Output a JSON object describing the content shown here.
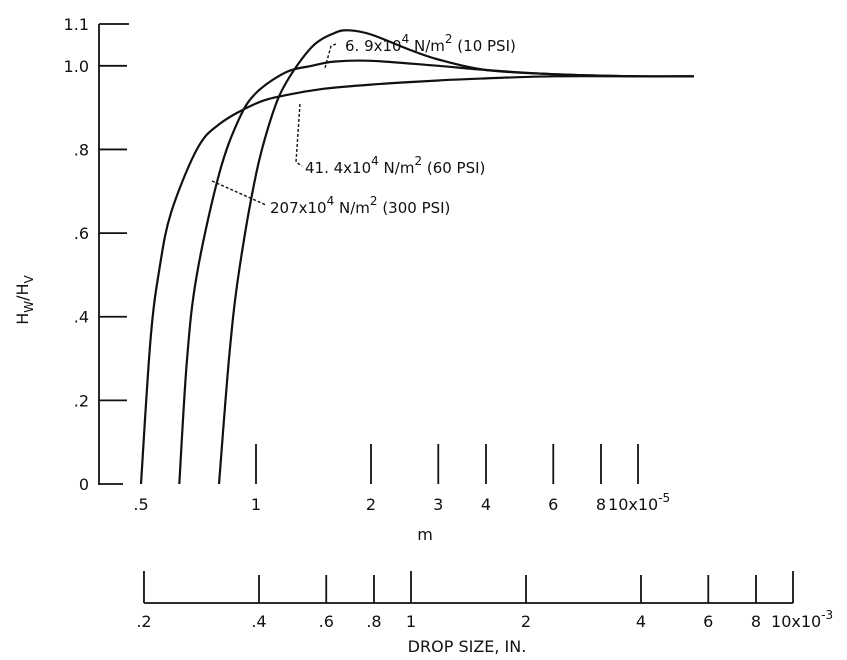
{
  "chart_data": {
    "type": "line",
    "x_scale": "log",
    "ylabel": "H",
    "ylabel_sub1": "W",
    "ylabel_sep": "/H",
    "ylabel_sub2": "V",
    "xlabel_primary": "m",
    "xlabel_secondary": "DROP SIZE, IN.",
    "xlim_m": [
      4e-06,
      0.0001
    ],
    "ylim": [
      0,
      1.1
    ],
    "y_ticks": [
      {
        "value": 0,
        "label": "0"
      },
      {
        "value": 0.2,
        "label": ".2"
      },
      {
        "value": 0.4,
        "label": ".4"
      },
      {
        "value": 0.6,
        "label": ".6"
      },
      {
        "value": 0.8,
        "label": ".8"
      },
      {
        "value": 1.0,
        "label": "1.0"
      },
      {
        "value": 1.1,
        "label": "1.1"
      }
    ],
    "x_ticks_m": [
      {
        "value": 5e-06,
        "label": ".5"
      },
      {
        "value": 1e-05,
        "label": "1"
      },
      {
        "value": 2e-05,
        "label": "2"
      },
      {
        "value": 3e-05,
        "label": "3"
      },
      {
        "value": 4e-05,
        "label": "4"
      },
      {
        "value": 6e-05,
        "label": "6"
      },
      {
        "value": 8e-05,
        "label": "8"
      },
      {
        "value": 0.0001,
        "label": "10x10",
        "sup": "-5"
      }
    ],
    "x_ticks_in": [
      {
        "value": 0.0002,
        "label": ".2"
      },
      {
        "value": 0.0004,
        "label": ".4"
      },
      {
        "value": 0.0006,
        "label": ".6"
      },
      {
        "value": 0.0008,
        "label": ".8"
      },
      {
        "value": 0.001,
        "label": "1"
      },
      {
        "value": 0.002,
        "label": "2"
      },
      {
        "value": 0.004,
        "label": "4"
      },
      {
        "value": 0.006,
        "label": "6"
      },
      {
        "value": 0.008,
        "label": "8"
      },
      {
        "value": 0.01,
        "label": "10x10",
        "sup": "-3"
      }
    ],
    "series": [
      {
        "name": "6.9x10^4 N/m^2 (10 PSI)",
        "x": [
          8e-06,
          8.5e-06,
          9e-06,
          1e-05,
          1.1e-05,
          1.2e-05,
          1.4e-05,
          1.6e-05,
          1.75e-05,
          2e-05,
          2.5e-05,
          3e-05,
          4e-05,
          6e-05,
          0.0001,
          0.00014
        ],
        "y": [
          0.0,
          0.3,
          0.5,
          0.74,
          0.88,
          0.96,
          1.045,
          1.078,
          1.085,
          1.075,
          1.04,
          1.015,
          0.99,
          0.98,
          0.975,
          0.975
        ]
      },
      {
        "name": "41.4x10^4 N/m^2 (60 PSI)",
        "x": [
          6.3e-06,
          6.6e-06,
          7e-06,
          8e-06,
          9e-06,
          1e-05,
          1.2e-05,
          1.4e-05,
          1.6e-05,
          2e-05,
          3e-05,
          4e-05,
          6e-05,
          0.0001,
          0.00014
        ],
        "y": [
          0.0,
          0.3,
          0.5,
          0.74,
          0.87,
          0.935,
          0.985,
          1.0,
          1.01,
          1.012,
          1.0,
          0.99,
          0.98,
          0.975,
          0.975
        ]
      },
      {
        "name": "207x10^4 N/m^2 (300 PSI)",
        "x": [
          5e-06,
          5.3e-06,
          5.6e-06,
          6e-06,
          7e-06,
          8e-06,
          1e-05,
          1.2e-05,
          1.5e-05,
          2e-05,
          3e-05,
          4e-05,
          6e-05,
          0.0001,
          0.00014
        ],
        "y": [
          0.0,
          0.35,
          0.52,
          0.65,
          0.8,
          0.86,
          0.91,
          0.93,
          0.945,
          0.955,
          0.965,
          0.97,
          0.975,
          0.975,
          0.975
        ]
      }
    ],
    "annotations": [
      {
        "series": 0,
        "base": "6. 9x10",
        "sup": "4",
        "unit": " N/m",
        "unit_sup": "2",
        "tail": " (10 PSI)"
      },
      {
        "series": 1,
        "base": "41. 4x10",
        "sup": "4",
        "unit": " N/m",
        "unit_sup": "2",
        "tail": " (60 PSI)"
      },
      {
        "series": 2,
        "base": "207x10",
        "sup": "4",
        "unit": " N/m",
        "unit_sup": "2",
        "tail": " (300 PSI)"
      }
    ],
    "legend": "none",
    "grid": false,
    "line_color": "#111111"
  }
}
